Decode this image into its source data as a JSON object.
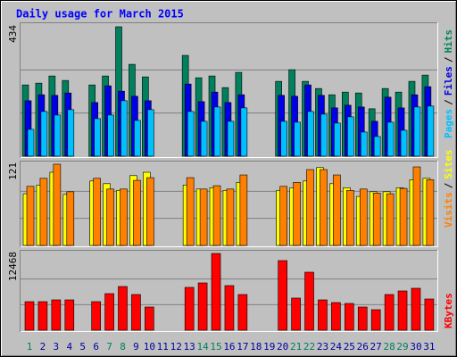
{
  "chart_data": {
    "type": "bar",
    "title": "Daily usage for March 2015",
    "categories": [
      "1",
      "2",
      "3",
      "4",
      "5",
      "6",
      "7",
      "8",
      "9",
      "10",
      "11",
      "12",
      "13",
      "14",
      "15",
      "16",
      "17",
      "18",
      "19",
      "20",
      "21",
      "22",
      "23",
      "24",
      "25",
      "26",
      "27",
      "28",
      "29",
      "30",
      "31"
    ],
    "highlight_categories": [
      0,
      6,
      7,
      13,
      14,
      20,
      21,
      27,
      28
    ],
    "highlight_color": "#00805c",
    "category_color": "#0000a0",
    "legend_separator": "/",
    "panels": [
      {
        "ylim": [
          0,
          434
        ],
        "yticks": [
          434
        ],
        "series": [
          {
            "name": "Hits",
            "color": "#00805c",
            "values": [
              239,
              245,
              269,
              254,
              0,
              239,
              269,
              434,
              308,
              266,
              0,
              0,
              338,
              263,
              269,
              230,
              281,
              0,
              0,
              251,
              290,
              251,
              227,
              206,
              215,
              212,
              159,
              227,
              215,
              251,
              272
            ]
          },
          {
            "name": "Files",
            "color": "#0000e6",
            "values": [
              186,
              206,
              204,
              212,
              0,
              180,
              236,
              218,
              201,
              186,
              0,
              0,
              242,
              183,
              215,
              180,
              206,
              0,
              0,
              204,
              201,
              239,
              204,
              162,
              171,
              165,
              117,
              198,
              162,
              206,
              233
            ]
          },
          {
            "name": "Pages",
            "color": "#00c0ff",
            "values": [
              90,
              150,
              138,
              156,
              0,
              126,
              138,
              186,
              120,
              156,
              0,
              0,
              150,
              117,
              165,
              117,
              162,
              0,
              0,
              117,
              114,
              150,
              141,
              111,
              132,
              81,
              66,
              114,
              87,
              165,
              168
            ]
          }
        ]
      },
      {
        "ylim": [
          0,
          121
        ],
        "yticks": [
          121
        ],
        "series": [
          {
            "name": "Sites",
            "color": "#ffff00",
            "values": [
              77,
              90,
              109,
              76,
              0,
              96,
              92,
              82,
              104,
              109,
              0,
              0,
              90,
              84,
              86,
              82,
              94,
              0,
              0,
              82,
              86,
              96,
              116,
              92,
              86,
              73,
              80,
              80,
              86,
              98,
              100
            ]
          },
          {
            "name": "Visits",
            "color": "#ff8000",
            "values": [
              88,
              100,
              121,
              80,
              0,
              100,
              84,
              84,
              97,
              101,
              0,
              0,
              101,
              84,
              89,
              84,
              105,
              0,
              0,
              88,
              94,
              113,
              113,
              105,
              82,
              84,
              78,
              77,
              85,
              117,
              98
            ]
          }
        ]
      },
      {
        "ylim": [
          0,
          12468
        ],
        "yticks": [
          12468
        ],
        "series": [
          {
            "name": "KBytes",
            "color": "#ff0000",
            "values": [
              4640,
              4640,
              4930,
              4930,
              0,
              4640,
              5945,
              7105,
              5800,
              3770,
              0,
              0,
              6960,
              7685,
              12468,
              7250,
              5800,
              0,
              0,
              11310,
              5220,
              9425,
              4930,
              4495,
              4350,
              3770,
              3335,
              5800,
              6380,
              6815,
              5075
            ]
          }
        ]
      }
    ]
  }
}
